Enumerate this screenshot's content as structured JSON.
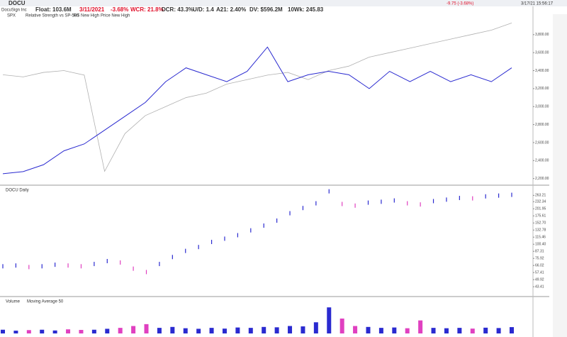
{
  "header": {
    "symbol": "DOCU",
    "company": "DocuSign Inc",
    "float": "Float: 103.6M",
    "date": "3/11/2021",
    "change": "-3.68%",
    "wcr": "WCR: 21.8%",
    "dcr": "DCR: 43.3%",
    "ud": "U/D: 1.4",
    "a21": "A21: 2.40%",
    "dv": "DV: $596.2M",
    "wk": "10Wk: 245.83",
    "quote": "-9.75 (-3.68%)",
    "time": "3/17/21 15:56:17"
  },
  "rs_panel": {
    "legend": [
      "SPX",
      "Relative Strength vs SP-500",
      "RS New High",
      "Price New High"
    ],
    "ylim": [
      2150,
      3980
    ],
    "yticks": [
      {
        "value": 3800,
        "label": "3,800.00"
      },
      {
        "value": 3600,
        "label": "3,600.00"
      },
      {
        "value": 3400,
        "label": "3,400.00"
      },
      {
        "value": 3200,
        "label": "3,200.00"
      },
      {
        "value": 3000,
        "label": "3,000.00"
      },
      {
        "value": 2800,
        "label": "2,800.00"
      },
      {
        "value": 2600,
        "label": "2,600.00"
      },
      {
        "value": 2400,
        "label": "2,400.00"
      },
      {
        "value": 2200,
        "label": "2,200.00"
      }
    ],
    "spx": {
      "color": "#b0b0b0",
      "values": [
        3354,
        3330,
        3380,
        3400,
        3350,
        2280,
        2700,
        2900,
        3000,
        3100,
        3150,
        3250,
        3300,
        3350,
        3380,
        3300,
        3400,
        3450,
        3550,
        3600,
        3650,
        3700,
        3750,
        3800,
        3850,
        3930
      ]
    },
    "rs": {
      "color": "#2a2ad0",
      "values": [
        2254,
        2277,
        2354,
        2508,
        2585,
        2738,
        2892,
        3046,
        3277,
        3431,
        3354,
        3277,
        3392,
        3662,
        3277,
        3354,
        3392,
        3354,
        3200,
        3392,
        3277,
        3392,
        3277,
        3354,
        3277,
        3431
      ]
    }
  },
  "price_panel": {
    "label": "DOCU Daily",
    "log": true,
    "ylim": [
      40,
      300
    ],
    "yticks": [
      {
        "value": 263.21,
        "label": "263.21"
      },
      {
        "value": 232.34,
        "label": "232.34"
      },
      {
        "value": 201.95,
        "label": "201.95"
      },
      {
        "value": 175.61,
        "label": "175.61"
      },
      {
        "value": 152.7,
        "label": "152.70"
      },
      {
        "value": 132.78,
        "label": "132.78"
      },
      {
        "value": 115.46,
        "label": "115.46"
      },
      {
        "value": 100.4,
        "label": "100.40"
      },
      {
        "value": 87.31,
        "label": "87.31"
      },
      {
        "value": 75.92,
        "label": "75.92"
      },
      {
        "value": 66.02,
        "label": "66.02"
      },
      {
        "value": 57.41,
        "label": "57.41"
      },
      {
        "value": 49.92,
        "label": "49.92"
      },
      {
        "value": 43.41,
        "label": "43.41"
      }
    ],
    "up_color": "#2a2ad0",
    "down_color": "#e040c0",
    "values": [
      65,
      66,
      64,
      65,
      67,
      66,
      65,
      68,
      72,
      70,
      62,
      58,
      68,
      78,
      88,
      95,
      105,
      112,
      120,
      132,
      145,
      160,
      185,
      205,
      225,
      285,
      222,
      215,
      228,
      232,
      238,
      225,
      220,
      235,
      242,
      250,
      248,
      258,
      262,
      266
    ]
  },
  "volume_panel": {
    "labels": [
      "Volume",
      "Moving Average 50"
    ],
    "ylim": [
      0,
      16
    ],
    "values": [
      2,
      1.5,
      1.8,
      2,
      1.6,
      2.2,
      1.9,
      2,
      2.5,
      3,
      4,
      5,
      3,
      3.5,
      2.8,
      2.5,
      3,
      2.6,
      3.2,
      3,
      3.5,
      3.3,
      4,
      3.8,
      6,
      14,
      8,
      4,
      3.5,
      3,
      3.2,
      2.8,
      7,
      3,
      2.8,
      3,
      2.6,
      3.1,
      2.9,
      3.4
    ]
  }
}
